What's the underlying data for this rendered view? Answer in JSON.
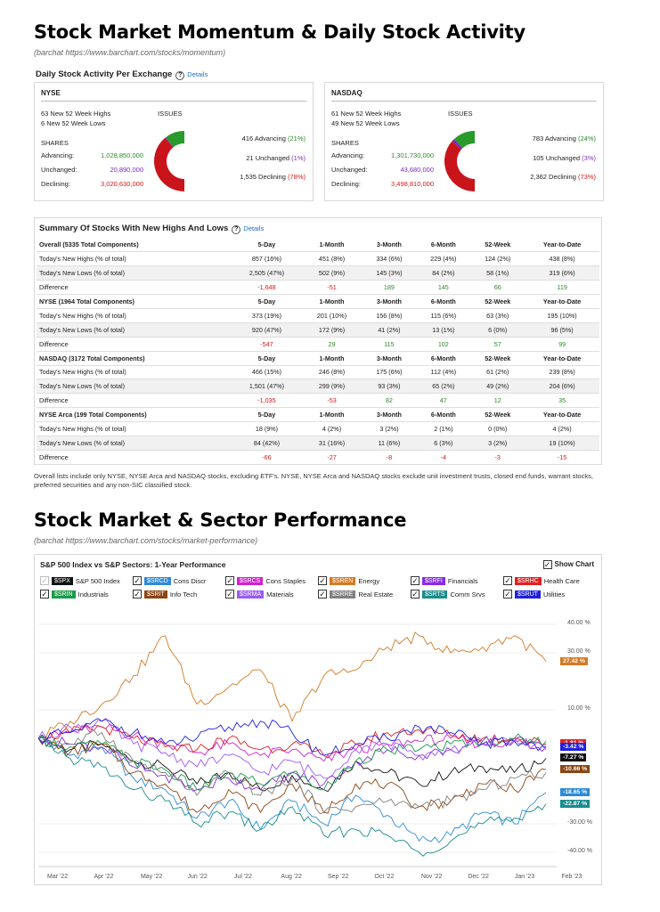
{
  "section1": {
    "title": "Stock Market Momentum & Daily Stock Activity",
    "source": "(barchat https://www.barchart.com/stocks/momentum)"
  },
  "activity": {
    "title": "Daily Stock Activity Per Exchange",
    "details": "Details",
    "exchanges": [
      {
        "name": "NYSE",
        "highs": "63 New 52 Week Highs",
        "lows": "6 New 52 Week Lows",
        "issues_label": "ISSUES",
        "shares_label": "SHARES",
        "advancing_label": "Advancing:",
        "advancing_value": "1,028,850,000",
        "unchanged_label": "Unchanged:",
        "unchanged_value": "20,890,000",
        "declining_label": "Declining:",
        "declining_value": "3,020,630,000",
        "adv_text": "416 Advancing",
        "adv_pct": "(21%)",
        "unch_text": "21 Unchanged",
        "unch_pct": "(1%)",
        "dec_text": "1,535 Declining",
        "dec_pct": "(78%)",
        "fractions": [
          0.21,
          0.01,
          0.78
        ]
      },
      {
        "name": "NASDAQ",
        "highs": "61 New 52 Week Highs",
        "lows": "49 New 52 Week Lows",
        "issues_label": "ISSUES",
        "shares_label": "SHARES",
        "advancing_label": "Advancing:",
        "advancing_value": "1,301,730,000",
        "unchanged_label": "Unchanged:",
        "unchanged_value": "43,680,000",
        "declining_label": "Declining:",
        "declining_value": "3,498,810,000",
        "adv_text": "783 Advancing",
        "adv_pct": "(24%)",
        "unch_text": "105 Unchanged",
        "unch_pct": "(3%)",
        "dec_text": "2,362 Declining",
        "dec_pct": "(73%)",
        "fractions": [
          0.24,
          0.03,
          0.73
        ]
      }
    ]
  },
  "summary": {
    "title": "Summary Of Stocks With New Highs And Lows",
    "details": "Details",
    "columns": [
      "5-Day",
      "1-Month",
      "3-Month",
      "6-Month",
      "52-Week",
      "Year-to-Date"
    ],
    "groups": [
      {
        "name": "Overall (5335 Total Components)",
        "highs_label": "Today's New Highs (% of total)",
        "highs": [
          "857 (16%)",
          "451 (8%)",
          "334 (6%)",
          "229 (4%)",
          "124 (2%)",
          "438 (8%)"
        ],
        "lows_label": "Today's New Lows (% of total)",
        "lows": [
          "2,505 (47%)",
          "502 (9%)",
          "145 (3%)",
          "84 (2%)",
          "58 (1%)",
          "319 (6%)"
        ],
        "diff_label": "Difference",
        "diff": [
          "-1,648",
          "-51",
          "189",
          "145",
          "66",
          "119"
        ]
      },
      {
        "name": "NYSE (1964 Total Components)",
        "highs_label": "Today's New Highs (% of total)",
        "highs": [
          "373 (19%)",
          "201 (10%)",
          "156 (8%)",
          "115 (6%)",
          "63 (3%)",
          "195 (10%)"
        ],
        "lows_label": "Today's New Lows (% of total)",
        "lows": [
          "920 (47%)",
          "172 (9%)",
          "41 (2%)",
          "13 (1%)",
          "6 (0%)",
          "96 (5%)"
        ],
        "diff_label": "Difference",
        "diff": [
          "-547",
          "29",
          "115",
          "102",
          "57",
          "99"
        ]
      },
      {
        "name": "NASDAQ (3172 Total Components)",
        "highs_label": "Today's New Highs (% of total)",
        "highs": [
          "466 (15%)",
          "246 (8%)",
          "175 (6%)",
          "112 (4%)",
          "61 (2%)",
          "239 (8%)"
        ],
        "lows_label": "Today's New Lows (% of total)",
        "lows": [
          "1,501 (47%)",
          "299 (9%)",
          "93 (3%)",
          "65 (2%)",
          "49 (2%)",
          "204 (6%)"
        ],
        "diff_label": "Difference",
        "diff": [
          "-1,035",
          "-53",
          "82",
          "47",
          "12",
          "35"
        ]
      },
      {
        "name": "NYSE Arca (199 Total Components)",
        "highs_label": "Today's New Highs (% of total)",
        "highs": [
          "18 (9%)",
          "4 (2%)",
          "3 (2%)",
          "2 (1%)",
          "0 (0%)",
          "4 (2%)"
        ],
        "lows_label": "Today's New Lows (% of total)",
        "lows": [
          "84 (42%)",
          "31 (16%)",
          "11 (6%)",
          "6 (3%)",
          "3 (2%)",
          "19 (10%)"
        ],
        "diff_label": "Difference",
        "diff": [
          "-66",
          "-27",
          "-8",
          "-4",
          "-3",
          "-15"
        ]
      }
    ]
  },
  "note": "Overall lists include only NYSE, NYSE Arca and NASDAQ stocks, excluding ETF's. NYSE, NYSE Arca and NASDAQ stocks exclude unit investment trusts, closed end funds, warrant stocks, preferred securities and any non-SIC classified stock.",
  "section2": {
    "title": "Stock Market & Sector Performance",
    "source": "(barchat https://www.barchart.com/stocks/market-performance)"
  },
  "chart_data": {
    "type": "line",
    "title": "S&P 500 Index vs S&P Sectors: 1-Year Performance",
    "show_chart_label": "Show Chart",
    "x_ticks": [
      "Mar '22",
      "Apr '22",
      "May '22",
      "Jun '22",
      "Jul '22",
      "Aug '22",
      "Sep '22",
      "Oct '22",
      "Nov '22",
      "Dec '22",
      "Jan '23",
      "Feb '23"
    ],
    "y_ticks": [
      "40.00 %",
      "30.00 %",
      "10.00 %",
      "-30.00 %",
      "-40.00 %"
    ],
    "ylim": [
      -45,
      45
    ],
    "series": [
      {
        "ticker": "$SPX",
        "name": "S&P 500 Index",
        "color": "#111111",
        "checked": false,
        "end_label": "-7.27 %",
        "values": [
          0,
          -4,
          -2,
          -8,
          -10,
          -16,
          -12,
          -18,
          -13,
          -18,
          -8,
          -12,
          -16,
          -12,
          -10,
          -12,
          -7
        ]
      },
      {
        "ticker": "$SRCD",
        "name": "Cons Discr",
        "color": "#2e8bd6",
        "checked": true,
        "end_label": "-18.65 %",
        "values": [
          0,
          -6,
          -3,
          -14,
          -18,
          -28,
          -22,
          -32,
          -22,
          -30,
          -20,
          -27,
          -36,
          -34,
          -26,
          -30,
          -19
        ]
      },
      {
        "ticker": "$SRCS",
        "name": "Cons Staples",
        "color": "#d020d0",
        "checked": true,
        "end_label": "",
        "values": [
          0,
          2,
          4,
          1,
          -2,
          -5,
          -2,
          -6,
          -4,
          -8,
          -4,
          -2,
          -1,
          0,
          -2,
          -1,
          -2
        ]
      },
      {
        "ticker": "$SREN",
        "name": "Energy",
        "color": "#d47a24",
        "checked": true,
        "end_label": "27.42 %",
        "values": [
          0,
          6,
          12,
          22,
          36,
          12,
          18,
          24,
          6,
          22,
          24,
          32,
          36,
          30,
          32,
          36,
          27
        ]
      },
      {
        "ticker": "$SRFI",
        "name": "Financials",
        "color": "#8a2be2",
        "checked": true,
        "end_label": "",
        "values": [
          0,
          -2,
          -3,
          -10,
          -13,
          -18,
          -14,
          -18,
          -12,
          -16,
          -8,
          -4,
          -6,
          -4,
          -2,
          -1,
          -3
        ]
      },
      {
        "ticker": "$SRHC",
        "name": "Health Care",
        "color": "#e02020",
        "checked": true,
        "end_label": "-1.81 %",
        "values": [
          0,
          2,
          4,
          0,
          -3,
          -4,
          0,
          -4,
          -2,
          -6,
          -2,
          2,
          3,
          1,
          0,
          0,
          -2
        ]
      },
      {
        "ticker": "$SRIN",
        "name": "Industrials",
        "color": "#1a9c4a",
        "checked": true,
        "end_label": "",
        "values": [
          0,
          -3,
          -2,
          -8,
          -11,
          -18,
          -12,
          -16,
          -12,
          -18,
          -8,
          -4,
          -4,
          -2,
          -1,
          0,
          -1
        ]
      },
      {
        "ticker": "$SRIT",
        "name": "Info Tech",
        "color": "#8b4513",
        "checked": true,
        "end_label": "-10.66 %",
        "values": [
          0,
          -5,
          -2,
          -12,
          -16,
          -26,
          -18,
          -26,
          -16,
          -26,
          -16,
          -16,
          -24,
          -22,
          -16,
          -18,
          -11
        ]
      },
      {
        "ticker": "$SRMA",
        "name": "Materials",
        "color": "#9b59f6",
        "checked": true,
        "end_label": "",
        "values": [
          0,
          4,
          6,
          -2,
          -5,
          -10,
          -6,
          -12,
          -8,
          -14,
          -4,
          -2,
          -6,
          -4,
          -1,
          0,
          -4
        ]
      },
      {
        "ticker": "$SRRE",
        "name": "Real Estate",
        "color": "#808080",
        "checked": true,
        "end_label": "",
        "values": [
          0,
          -2,
          2,
          -8,
          -12,
          -20,
          -12,
          -20,
          -14,
          -26,
          -24,
          -22,
          -24,
          -22,
          -18,
          -14,
          -12
        ]
      },
      {
        "ticker": "$SRTS",
        "name": "Comm Srvs",
        "color": "#1a8c8c",
        "checked": true,
        "end_label": "-22.87 %",
        "values": [
          0,
          -7,
          -10,
          -18,
          -22,
          -30,
          -26,
          -32,
          -24,
          -34,
          -32,
          -34,
          -40,
          -36,
          -30,
          -28,
          -23
        ]
      },
      {
        "ticker": "$SRUT",
        "name": "Utilities",
        "color": "#2020e0",
        "checked": true,
        "end_label": "-3.42 %",
        "values": [
          0,
          2,
          6,
          2,
          -2,
          0,
          4,
          6,
          2,
          -6,
          -2,
          0,
          4,
          2,
          -2,
          -1,
          -3
        ]
      }
    ]
  }
}
